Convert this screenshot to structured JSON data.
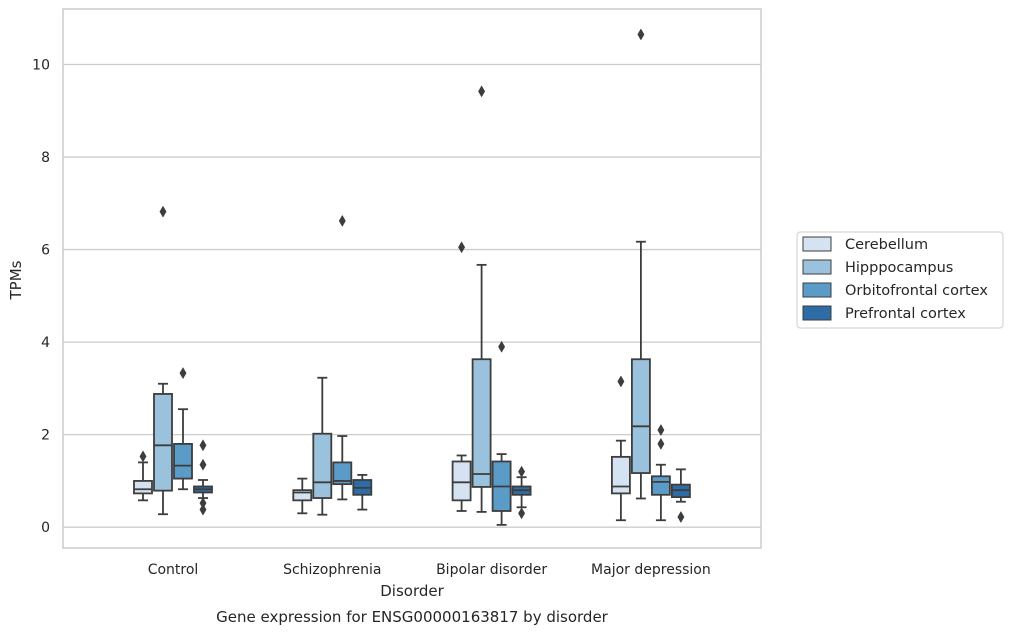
{
  "chart_data": {
    "type": "boxplot",
    "caption": "Gene expression for ENSG00000163817 by disorder",
    "xlabel": "Disorder",
    "ylabel": "TPMs",
    "ylim": [
      -0.45,
      11.2
    ],
    "yticks": [
      0,
      2,
      4,
      6,
      8,
      10
    ],
    "grid": "horizontal",
    "legend_position": "right",
    "categories": [
      "Control",
      "Schizophrenia",
      "Bipolar disorder",
      "Major depression"
    ],
    "series": [
      {
        "name": "Cerebellum",
        "color": "#d4e2f1",
        "boxes": [
          {
            "whislo": 0.58,
            "q1": 0.73,
            "med": 0.82,
            "q3": 1.0,
            "whishi": 1.4,
            "fliers": [
              1.53
            ]
          },
          {
            "whislo": 0.3,
            "q1": 0.58,
            "med": 0.75,
            "q3": 0.8,
            "whishi": 1.05,
            "fliers": []
          },
          {
            "whislo": 0.35,
            "q1": 0.58,
            "med": 0.97,
            "q3": 1.42,
            "whishi": 1.55,
            "fliers": [
              6.05
            ]
          },
          {
            "whislo": 0.15,
            "q1": 0.73,
            "med": 0.88,
            "q3": 1.52,
            "whishi": 1.87,
            "fliers": [
              3.15
            ]
          }
        ]
      },
      {
        "name": "Hipppocampus",
        "color": "#9ac2dc",
        "boxes": [
          {
            "whislo": 0.28,
            "q1": 0.79,
            "med": 1.77,
            "q3": 2.88,
            "whishi": 3.1,
            "fliers": [
              6.82
            ]
          },
          {
            "whislo": 0.27,
            "q1": 0.63,
            "med": 0.97,
            "q3": 2.02,
            "whishi": 3.23,
            "fliers": []
          },
          {
            "whislo": 0.33,
            "q1": 0.87,
            "med": 1.15,
            "q3": 3.63,
            "whishi": 5.67,
            "fliers": [
              9.42
            ]
          },
          {
            "whislo": 0.62,
            "q1": 1.17,
            "med": 2.18,
            "q3": 3.63,
            "whishi": 6.17,
            "fliers": [
              10.65
            ]
          }
        ]
      },
      {
        "name": "Orbitofrontal cortex",
        "color": "#5b9bc8",
        "boxes": [
          {
            "whislo": 0.82,
            "q1": 1.05,
            "med": 1.33,
            "q3": 1.8,
            "whishi": 2.55,
            "fliers": [
              3.33
            ]
          },
          {
            "whislo": 0.6,
            "q1": 0.93,
            "med": 1.0,
            "q3": 1.4,
            "whishi": 1.97,
            "fliers": [
              6.62
            ]
          },
          {
            "whislo": 0.05,
            "q1": 0.35,
            "med": 0.88,
            "q3": 1.42,
            "whishi": 1.58,
            "fliers": [
              3.9
            ]
          },
          {
            "whislo": 0.15,
            "q1": 0.7,
            "med": 0.98,
            "q3": 1.1,
            "whishi": 1.35,
            "fliers": [
              2.1,
              1.8
            ]
          }
        ]
      },
      {
        "name": "Prefrontal cortex",
        "color": "#2e6ca6",
        "boxes": [
          {
            "whislo": 0.63,
            "q1": 0.75,
            "med": 0.82,
            "q3": 0.88,
            "whishi": 1.02,
            "fliers": [
              1.77,
              1.35,
              0.52,
              0.38
            ]
          },
          {
            "whislo": 0.38,
            "q1": 0.7,
            "med": 0.85,
            "q3": 1.02,
            "whishi": 1.13,
            "fliers": []
          },
          {
            "whislo": 0.43,
            "q1": 0.7,
            "med": 0.8,
            "q3": 0.88,
            "whishi": 1.08,
            "fliers": [
              1.2,
              0.3
            ]
          },
          {
            "whislo": 0.55,
            "q1": 0.65,
            "med": 0.8,
            "q3": 0.92,
            "whishi": 1.25,
            "fliers": [
              0.22
            ]
          }
        ]
      }
    ]
  }
}
